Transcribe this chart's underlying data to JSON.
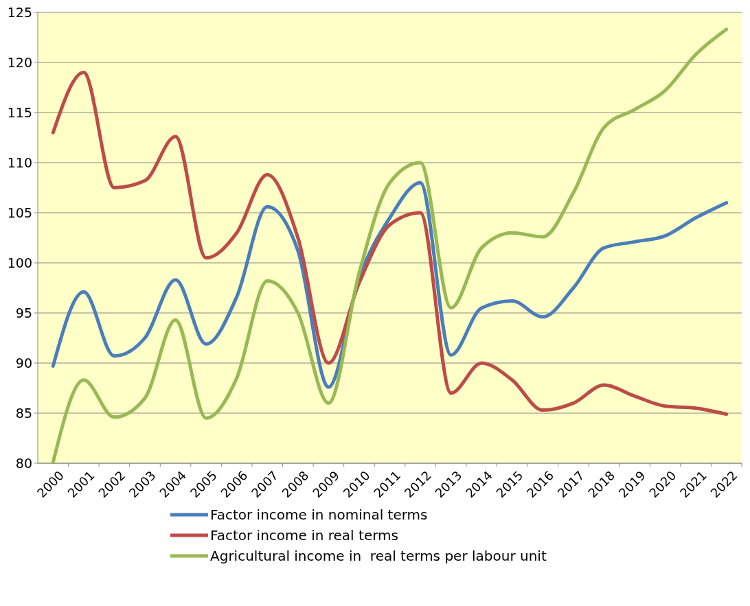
{
  "chart_data": {
    "type": "line",
    "categories": [
      "2000",
      "2001",
      "2002",
      "2003",
      "2004",
      "2005",
      "2006",
      "2007",
      "2008",
      "2009",
      "2010",
      "2011",
      "2012",
      "2013",
      "2014",
      "2015",
      "2016",
      "2017",
      "2018",
      "2019",
      "2020",
      "2021",
      "2022"
    ],
    "series": [
      {
        "name": "Factor income in nominal terms",
        "color": "#4a7ebb",
        "values": [
          89.7,
          97.1,
          90.7,
          92.5,
          98.3,
          91.9,
          96.6,
          105.6,
          101.2,
          87.6,
          98.5,
          104.5,
          108,
          90.8,
          95.5,
          96.2,
          94.6,
          97.5,
          101.5,
          102.1,
          102.7,
          104.5,
          106
        ]
      },
      {
        "name": "Factor income in real terms",
        "color": "#be4b48",
        "values": [
          113,
          119,
          107.5,
          108.2,
          112.6,
          100.5,
          103,
          108.8,
          102.5,
          90,
          98,
          103.8,
          105,
          87,
          90,
          88.3,
          85.3,
          86,
          87.8,
          86.7,
          85.7,
          85.5,
          84.9
        ]
      },
      {
        "name": "Agricultural income in  real terms per labour unit",
        "color": "#98b954",
        "values": [
          80.1,
          88.3,
          84.6,
          86.5,
          94.3,
          84.5,
          88.5,
          98.2,
          95,
          86,
          99,
          108,
          110,
          95.5,
          101.5,
          103,
          102.6,
          107,
          113.5,
          115.3,
          117.2,
          120.8,
          123.3
        ]
      }
    ],
    "ylim": [
      80,
      125
    ],
    "yticks": [
      80,
      85,
      90,
      95,
      100,
      105,
      110,
      115,
      120,
      125
    ],
    "grid": "y",
    "legend": "bottom"
  }
}
